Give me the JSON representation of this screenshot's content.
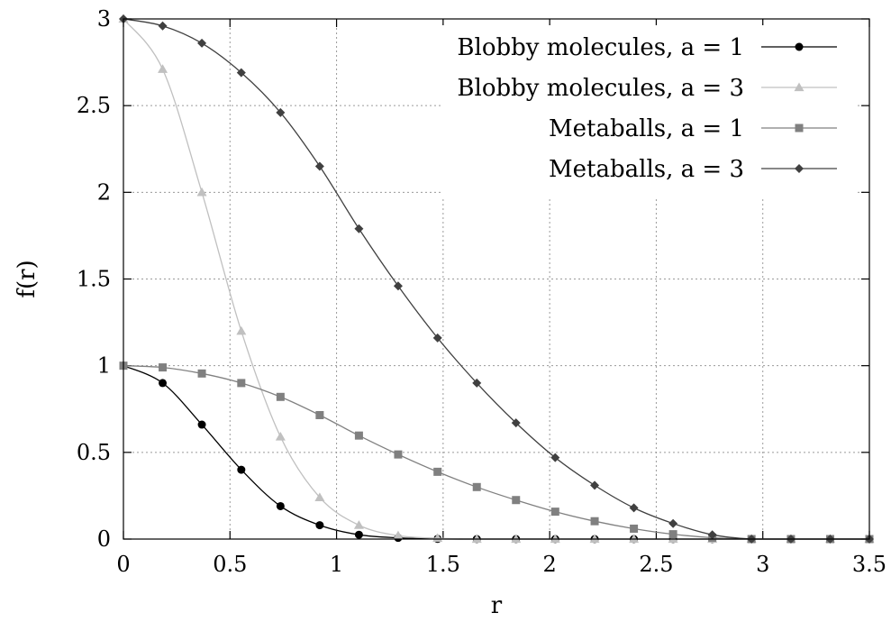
{
  "chart_data": {
    "type": "line",
    "title": "",
    "xlabel": "r",
    "ylabel": "f(r)",
    "xlim": [
      0,
      3.5
    ],
    "ylim": [
      0,
      3
    ],
    "xticks": [
      "0",
      "0.5",
      "1",
      "1.5",
      "2",
      "2.5",
      "3",
      "3.5"
    ],
    "yticks": [
      "0",
      "0.5",
      "1",
      "1.5",
      "2",
      "2.5",
      "3"
    ],
    "grid": true,
    "legend_position": "top-right",
    "marker_x": [
      0,
      0.184,
      0.368,
      0.553,
      0.737,
      0.921,
      1.105,
      1.289,
      1.474,
      1.658,
      1.842,
      2.026,
      2.211,
      2.395,
      2.579,
      2.763,
      2.947,
      3.132,
      3.316,
      3.5
    ],
    "series": [
      {
        "name": "Blobby molecules, a = 1",
        "color": "#000000",
        "marker": "circle",
        "values": [
          1.0,
          0.9,
          0.66,
          0.4,
          0.19,
          0.08,
          0.025,
          0.007,
          0.001,
          0.0,
          0.0,
          0.0,
          0.0,
          0.0,
          0.0,
          0.0,
          0.0,
          0.0,
          0.0,
          0.0
        ]
      },
      {
        "name": "Blobby molecules, a = 3",
        "color": "#c0c0c0",
        "marker": "triangle",
        "values": [
          3.0,
          2.71,
          2.0,
          1.2,
          0.59,
          0.24,
          0.08,
          0.02,
          0.005,
          0.0,
          0.0,
          0.0,
          0.0,
          0.0,
          0.0,
          0.0,
          0.0,
          0.0,
          0.0,
          0.0
        ]
      },
      {
        "name": "Metaballs, a = 1",
        "color": "#808080",
        "marker": "square",
        "values": [
          1.0,
          0.99,
          0.955,
          0.9,
          0.82,
          0.715,
          0.597,
          0.488,
          0.388,
          0.3,
          0.225,
          0.158,
          0.103,
          0.06,
          0.028,
          0.008,
          0.0,
          0.0,
          0.0,
          0.0
        ]
      },
      {
        "name": "Metaballs, a = 3",
        "color": "#404040",
        "marker": "diamond",
        "values": [
          3.0,
          2.96,
          2.86,
          2.69,
          2.46,
          2.15,
          1.79,
          1.46,
          1.16,
          0.9,
          0.67,
          0.47,
          0.31,
          0.18,
          0.09,
          0.025,
          0.0,
          0.0,
          0.0,
          0.0
        ]
      }
    ]
  }
}
